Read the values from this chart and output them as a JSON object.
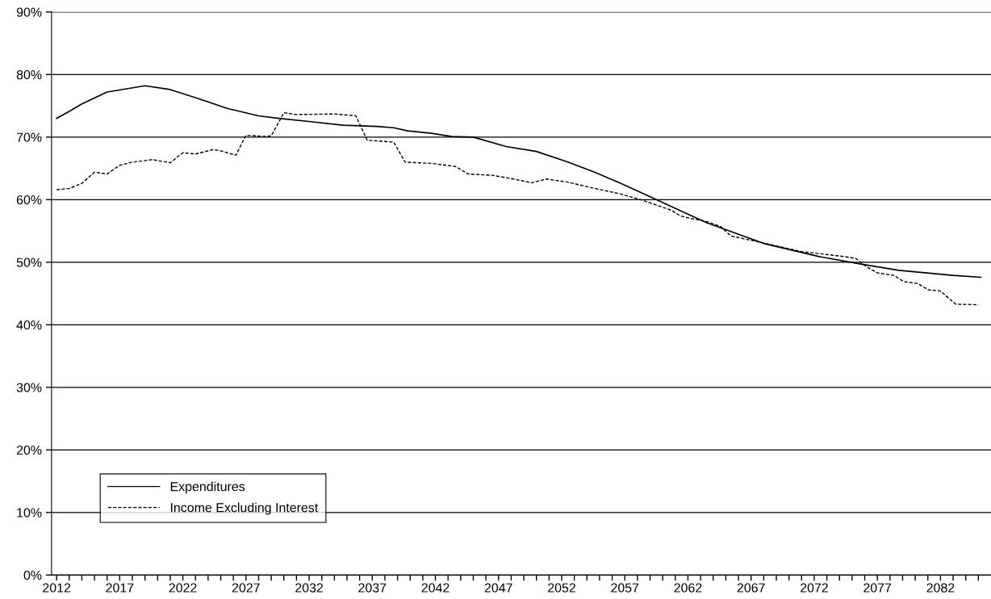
{
  "chart_data": {
    "type": "line",
    "xlim": [
      2011.6,
      2086.0
    ],
    "xticks": [
      2012,
      {
        "value": 2013,
        "label": null
      },
      {
        "value": 2014,
        "label": null
      },
      {
        "value": 2015,
        "label": null
      },
      {
        "value": 2016,
        "label": null
      },
      2017,
      {
        "value": 2018,
        "label": null
      },
      {
        "value": 2019,
        "label": null
      },
      {
        "value": 2020,
        "label": null
      },
      {
        "value": 2021,
        "label": null
      },
      2022,
      {
        "value": 2023,
        "label": null
      },
      {
        "value": 2024,
        "label": null
      },
      {
        "value": 2025,
        "label": null
      },
      {
        "value": 2026,
        "label": null
      },
      2027,
      {
        "value": 2028,
        "label": null
      },
      {
        "value": 2029,
        "label": null
      },
      {
        "value": 2030,
        "label": null
      },
      {
        "value": 2031,
        "label": null
      },
      2032,
      {
        "value": 2033,
        "label": null
      },
      {
        "value": 2034,
        "label": null
      },
      {
        "value": 2035,
        "label": null
      },
      {
        "value": 2036,
        "label": null
      },
      2037,
      {
        "value": 2038,
        "label": null
      },
      {
        "value": 2039,
        "label": null
      },
      {
        "value": 2040,
        "label": null
      },
      {
        "value": 2041,
        "label": null
      },
      2042,
      {
        "value": 2043,
        "label": null
      },
      {
        "value": 2044,
        "label": null
      },
      {
        "value": 2045,
        "label": null
      },
      {
        "value": 2046,
        "label": null
      },
      2047,
      {
        "value": 2048,
        "label": null
      },
      {
        "value": 2049,
        "label": null
      },
      {
        "value": 2050,
        "label": null
      },
      {
        "value": 2051,
        "label": null
      },
      2052,
      {
        "value": 2053,
        "label": null
      },
      {
        "value": 2054,
        "label": null
      },
      {
        "value": 2055,
        "label": null
      },
      {
        "value": 2056,
        "label": null
      },
      2057,
      {
        "value": 2058,
        "label": null
      },
      {
        "value": 2059,
        "label": null
      },
      {
        "value": 2060,
        "label": null
      },
      {
        "value": 2061,
        "label": null
      },
      2062,
      {
        "value": 2063,
        "label": null
      },
      {
        "value": 2064,
        "label": null
      },
      {
        "value": 2065,
        "label": null
      },
      {
        "value": 2066,
        "label": null
      },
      2067,
      {
        "value": 2068,
        "label": null
      },
      {
        "value": 2069,
        "label": null
      },
      {
        "value": 2070,
        "label": null
      },
      {
        "value": 2071,
        "label": null
      },
      2072,
      {
        "value": 2073,
        "label": null
      },
      {
        "value": 2074,
        "label": null
      },
      {
        "value": 2075,
        "label": null
      },
      {
        "value": 2076,
        "label": null
      },
      2077,
      {
        "value": 2078,
        "label": null
      },
      {
        "value": 2079,
        "label": null
      },
      {
        "value": 2080,
        "label": null
      },
      {
        "value": 2081,
        "label": null
      },
      2082,
      {
        "value": 2083,
        "label": null
      },
      {
        "value": 2084,
        "label": null
      },
      {
        "value": 2085,
        "label": null
      }
    ],
    "ylim": [
      0,
      90
    ],
    "yticks": [
      {
        "value": 0,
        "label": "0%"
      },
      {
        "value": 10,
        "label": "10%"
      },
      {
        "value": 20,
        "label": "20%"
      },
      {
        "value": 30,
        "label": "30%"
      },
      {
        "value": 40,
        "label": "40%"
      },
      {
        "value": 50,
        "label": "50%"
      },
      {
        "value": 60,
        "label": "60%"
      },
      {
        "value": 70,
        "label": "70%"
      },
      {
        "value": 80,
        "label": "80%"
      },
      {
        "value": 90,
        "label": "90%"
      }
    ],
    "grid": "y",
    "legend": "bottom left",
    "marker": "none",
    "series": [
      {
        "name": "Expenditures",
        "color": "#000000",
        "line_style": "solid",
        "x": [
          2012,
          2013,
          2014,
          2016,
          2019,
          2021,
          2023,
          2025.5,
          2028,
          2029.6,
          2032,
          2034.7,
          2037.4,
          2038.7,
          2039.8,
          2041.7,
          2043.3,
          2045,
          2047.6,
          2050,
          2052.5,
          2054.6,
          2056.7,
          2059.5,
          2062.2,
          2063.5,
          2068,
          2072.4,
          2075.7,
          2078.7,
          2083,
          2085.2
        ],
        "values": [
          73.0,
          74.1,
          75.3,
          77.2,
          78.2,
          77.6,
          76.3,
          74.6,
          73.4,
          73.0,
          72.5,
          71.9,
          71.7,
          71.5,
          71.0,
          70.6,
          70.1,
          70.0,
          68.5,
          67.7,
          66.0,
          64.4,
          62.6,
          60.0,
          57.5,
          56.3,
          53.0,
          50.9,
          49.7,
          48.7,
          47.9,
          47.6
        ]
      },
      {
        "name": "Income Excluding Interest",
        "color": "#000000",
        "line_style": "dashed",
        "x": [
          2012,
          2013,
          2014,
          2015,
          2016,
          2017,
          2018,
          2019.6,
          2021,
          2022,
          2023,
          2024.4,
          2025,
          2026.2,
          2027,
          2028.5,
          2029,
          2030,
          2031,
          2034,
          2035.7,
          2036.6,
          2038.7,
          2039.6,
          2041.7,
          2043.6,
          2044.6,
          2046.5,
          2048.2,
          2049.6,
          2050.8,
          2052.5,
          2054.6,
          2056.7,
          2058.4,
          2060.7,
          2061.4,
          2062.2,
          2063.5,
          2064.6,
          2065.4,
          2067.7,
          2071,
          2074.4,
          2075.3,
          2076.2,
          2077,
          2078.3,
          2079.1,
          2080.2,
          2081,
          2082,
          2083.2,
          2085
        ],
        "values": [
          61.6,
          61.8,
          62.6,
          64.4,
          64.1,
          65.5,
          66.0,
          66.4,
          65.9,
          67.5,
          67.3,
          68.0,
          67.8,
          67.1,
          70.3,
          70.1,
          70.2,
          73.9,
          73.6,
          73.7,
          73.4,
          69.5,
          69.2,
          66.0,
          65.8,
          65.3,
          64.1,
          63.9,
          63.3,
          62.7,
          63.3,
          62.8,
          61.8,
          60.9,
          59.9,
          58.3,
          57.4,
          57.0,
          56.5,
          55.7,
          54.2,
          53.2,
          51.7,
          50.9,
          50.6,
          49.2,
          48.3,
          47.9,
          46.9,
          46.6,
          45.6,
          45.4,
          43.3,
          43.2
        ]
      }
    ]
  }
}
